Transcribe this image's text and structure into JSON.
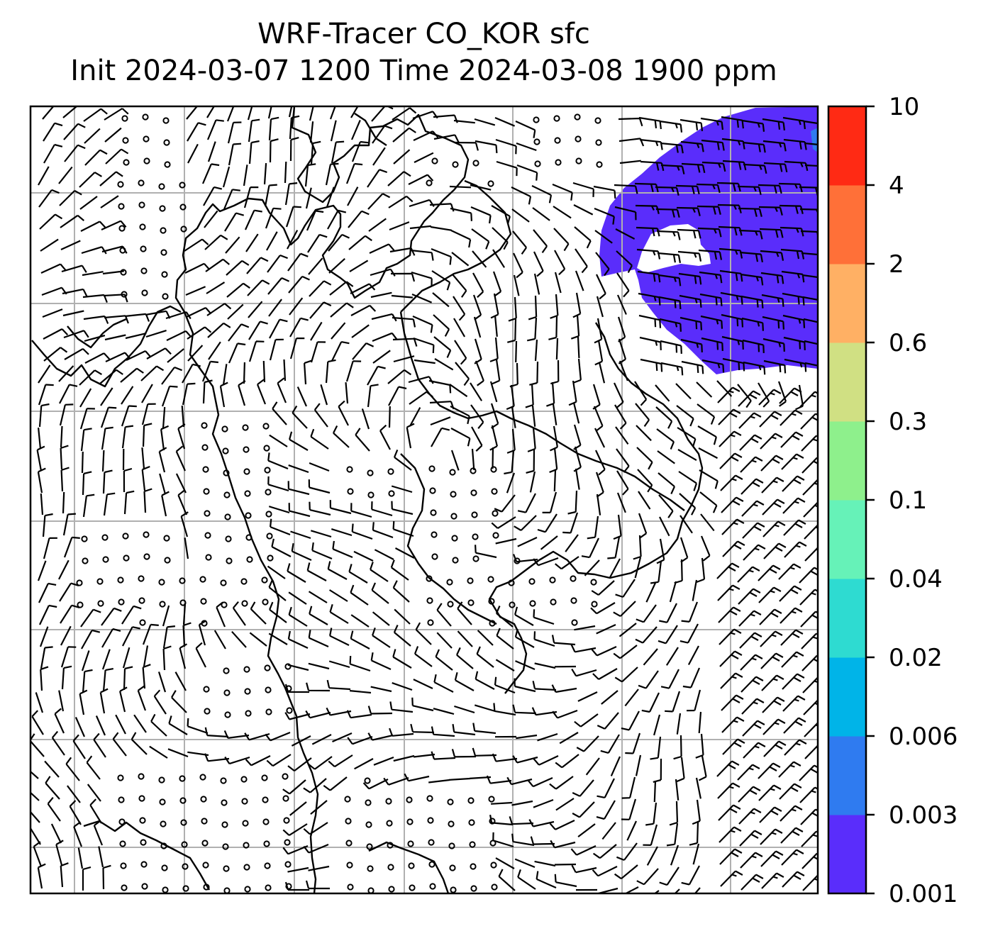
{
  "title": {
    "line1": "WRF-Tracer CO_KOR sfc",
    "line2": "Init 2024-03-07 1200 Time 2024-03-08 1900 ppm"
  },
  "colorbar": {
    "levels": [
      "0.001",
      "0.003",
      "0.006",
      "0.02",
      "0.04",
      "0.1",
      "0.3",
      "0.6",
      "2",
      "4",
      "10"
    ],
    "colors": [
      "#5a2dfb",
      "#2f7bf0",
      "#00b4e8",
      "#2edbd1",
      "#66f2b8",
      "#8ef08c",
      "#d0e083",
      "#ffb064",
      "#ff7038",
      "#ff2a14"
    ]
  },
  "map": {
    "plume_color": "#5a2dfb",
    "plume_edge_color": "#2f7bf0",
    "gridline_color": "#b0b0b0",
    "features": [
      "coastlines",
      "wind-barbs",
      "lat-lon-gridlines",
      "co-tracer-plume"
    ]
  }
}
